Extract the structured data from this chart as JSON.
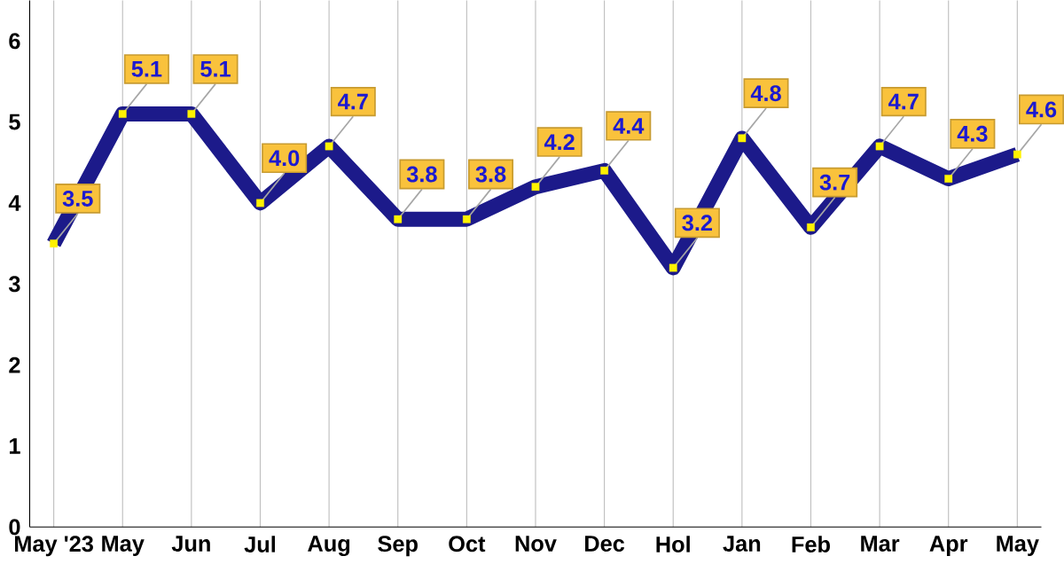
{
  "chart_data": {
    "type": "line",
    "categories": [
      "May '23",
      "May",
      "Jun",
      "Jul",
      "Aug",
      "Sep",
      "Oct",
      "Nov",
      "Dec",
      "Hol",
      "Jan",
      "Feb",
      "Mar",
      "Apr",
      "May"
    ],
    "series": [
      {
        "color": "#1c1a8a",
        "values": [
          3.5,
          5.1,
          5.1,
          4.0,
          4.7,
          3.8,
          3.8,
          4.2,
          4.4,
          3.2,
          4.8,
          3.7,
          4.7,
          4.3,
          4.6
        ],
        "value_labels": [
          "3.5",
          "5.1",
          "5.1",
          "4.0",
          "4.7",
          "3.8",
          "3.8",
          "4.2",
          "4.4",
          "3.2",
          "4.8",
          "3.7",
          "4.7",
          "4.3",
          "4.6"
        ]
      }
    ],
    "ylim": [
      0,
      6.5
    ],
    "yticks": [
      0,
      1,
      2,
      3,
      4,
      5,
      6
    ],
    "grid": "x",
    "marker": "square",
    "line_style": "solid"
  }
}
